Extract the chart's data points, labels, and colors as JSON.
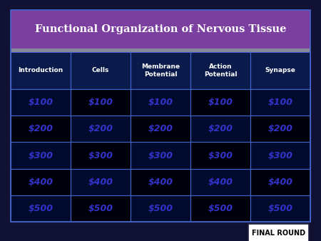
{
  "title": "Functional Organization of Nervous Tissue",
  "title_color": "#FFFFFF",
  "title_bg": "#7B3FA0",
  "categories": [
    "Introduction",
    "Cells",
    "Membrane\nPotential",
    "Action\nPotential",
    "Synapse"
  ],
  "values": [
    "$100",
    "$200",
    "$300",
    "$400",
    "$500"
  ],
  "cell_bg": "#020B2D",
  "cell_bg_dark": "#00000A",
  "money_color": "#3333CC",
  "header_bg": "#0A1A4A",
  "header_text": "#FFFFFF",
  "border_color": "#4466CC",
  "sep_color": "#888899",
  "final_round_text": "FINAL ROUND",
  "final_round_bg": "#FFFFFF",
  "final_round_text_color": "#000000",
  "outer_bg": "#111133",
  "figsize": [
    4.5,
    3.38
  ],
  "dpi": 100
}
